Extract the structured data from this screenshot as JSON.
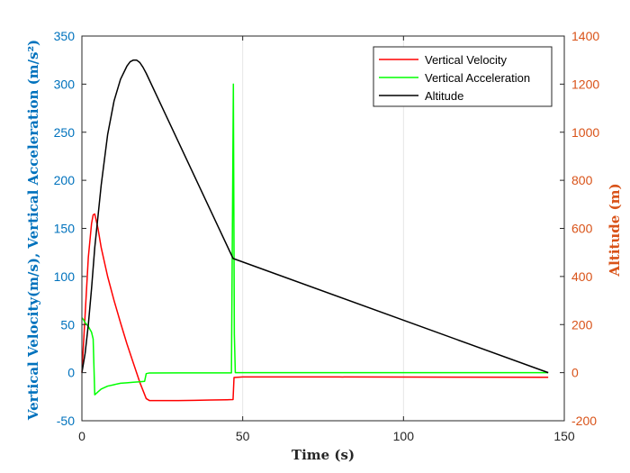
{
  "chart_data": {
    "type": "line",
    "title": "",
    "xlabel": "Time (s)",
    "ylabel_left": "Vertical Velocity(m/s), Vertical Acceleration (m/s²)",
    "ylabel_right": "Altitude (m)",
    "xlim": [
      0,
      150
    ],
    "ylim_left": [
      -50,
      350
    ],
    "ylim_right": [
      -200,
      1400
    ],
    "x_ticks": [
      "0",
      "50",
      "100",
      "150"
    ],
    "y_ticks_left": [
      "-50",
      "0",
      "50",
      "100",
      "150",
      "200",
      "250",
      "300",
      "350"
    ],
    "y_ticks_right": [
      "-200",
      "0",
      "200",
      "400",
      "600",
      "800",
      "1000",
      "1200",
      "1400"
    ],
    "grid": true,
    "legend_position": "top-right",
    "colors": {
      "left_axis": "#0072BD",
      "right_axis": "#D95319",
      "velocity": "#FF0000",
      "acceleration": "#00FF00",
      "altitude": "#000000",
      "grid": "#E6E6E6"
    },
    "series": [
      {
        "name": "Vertical Velocity",
        "axis": "left",
        "color": "#FF0000",
        "points": [
          [
            0,
            0
          ],
          [
            1,
            60
          ],
          [
            2,
            120
          ],
          [
            3,
            155
          ],
          [
            3.5,
            164
          ],
          [
            4,
            165
          ],
          [
            5,
            150
          ],
          [
            6,
            130
          ],
          [
            8,
            100
          ],
          [
            10,
            75
          ],
          [
            12,
            52
          ],
          [
            14,
            30
          ],
          [
            16,
            10
          ],
          [
            18,
            -10
          ],
          [
            20,
            -27
          ],
          [
            21,
            -29
          ],
          [
            25,
            -29
          ],
          [
            30,
            -29
          ],
          [
            35,
            -28.8
          ],
          [
            40,
            -28.5
          ],
          [
            45,
            -28.2
          ],
          [
            47,
            -28
          ],
          [
            47.3,
            -5
          ],
          [
            50,
            -4.5
          ],
          [
            80,
            -4.5
          ],
          [
            100,
            -4.6
          ],
          [
            120,
            -4.7
          ],
          [
            145,
            -4.8
          ]
        ]
      },
      {
        "name": "Vertical Acceleration",
        "axis": "left",
        "color": "#00FF00",
        "points": [
          [
            0,
            57
          ],
          [
            0.5,
            55
          ],
          [
            1,
            52
          ],
          [
            2,
            48
          ],
          [
            3,
            42
          ],
          [
            3.5,
            35
          ],
          [
            4,
            -23
          ],
          [
            5,
            -20
          ],
          [
            6,
            -17
          ],
          [
            8,
            -14
          ],
          [
            10,
            -12.5
          ],
          [
            12,
            -11
          ],
          [
            14,
            -10.5
          ],
          [
            16,
            -10
          ],
          [
            18,
            -9.5
          ],
          [
            19.5,
            -9
          ],
          [
            20,
            -1
          ],
          [
            21,
            -0.3
          ],
          [
            30,
            -0.2
          ],
          [
            40,
            -0.2
          ],
          [
            46.5,
            -0.2
          ],
          [
            47.1,
            300
          ],
          [
            47.4,
            40
          ],
          [
            47.7,
            0
          ],
          [
            50,
            0
          ],
          [
            80,
            0
          ],
          [
            100,
            0
          ],
          [
            145,
            0
          ]
        ]
      },
      {
        "name": "Altitude",
        "axis": "right",
        "color": "#000000",
        "points": [
          [
            0,
            0
          ],
          [
            1,
            80
          ],
          [
            2,
            200
          ],
          [
            3,
            350
          ],
          [
            4,
            520
          ],
          [
            5,
            650
          ],
          [
            6,
            780
          ],
          [
            8,
            990
          ],
          [
            10,
            1130
          ],
          [
            12,
            1220
          ],
          [
            14,
            1275
          ],
          [
            15,
            1293
          ],
          [
            16,
            1300
          ],
          [
            17,
            1300
          ],
          [
            18,
            1290
          ],
          [
            19,
            1270
          ],
          [
            20,
            1245
          ],
          [
            47,
            475
          ],
          [
            145,
            0
          ]
        ]
      }
    ]
  }
}
